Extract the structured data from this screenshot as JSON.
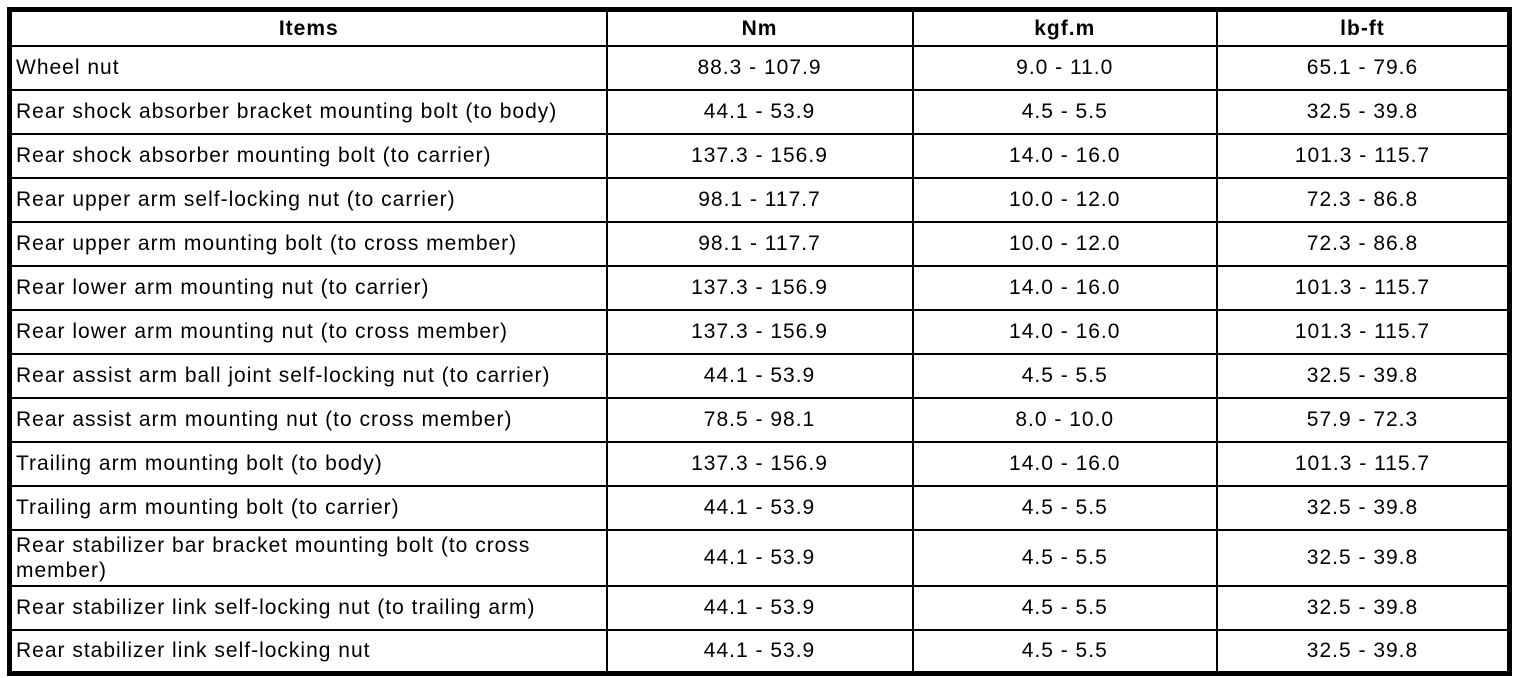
{
  "colors": {
    "border": "#000000",
    "text": "#000000",
    "background": "#ffffff"
  },
  "table": {
    "headers": [
      "Items",
      "Nm",
      "kgf.m",
      "lb-ft"
    ],
    "rows": [
      {
        "item": "Wheel nut",
        "nm": "88.3 - 107.9",
        "kgfm": "9.0 - 11.0",
        "lbft": "65.1 - 79.6"
      },
      {
        "item": "Rear shock absorber bracket mounting bolt (to body)",
        "nm": "44.1 - 53.9",
        "kgfm": "4.5 - 5.5",
        "lbft": "32.5 - 39.8"
      },
      {
        "item": "Rear shock absorber mounting bolt (to carrier)",
        "nm": "137.3 - 156.9",
        "kgfm": "14.0 - 16.0",
        "lbft": "101.3 - 115.7"
      },
      {
        "item": "Rear upper arm self-locking nut (to carrier)",
        "nm": "98.1 - 117.7",
        "kgfm": "10.0 - 12.0",
        "lbft": "72.3 - 86.8"
      },
      {
        "item": "Rear upper arm mounting bolt (to cross member)",
        "nm": "98.1 - 117.7",
        "kgfm": "10.0 - 12.0",
        "lbft": "72.3 - 86.8"
      },
      {
        "item": "Rear lower arm mounting nut (to carrier)",
        "nm": "137.3 - 156.9",
        "kgfm": "14.0 - 16.0",
        "lbft": "101.3 - 115.7"
      },
      {
        "item": "Rear lower arm mounting nut (to cross member)",
        "nm": "137.3 - 156.9",
        "kgfm": "14.0 - 16.0",
        "lbft": "101.3 - 115.7"
      },
      {
        "item": "Rear assist arm ball joint self-locking nut (to carrier)",
        "nm": "44.1 - 53.9",
        "kgfm": "4.5 - 5.5",
        "lbft": "32.5 - 39.8"
      },
      {
        "item": "Rear assist arm mounting nut (to cross member)",
        "nm": "78.5 - 98.1",
        "kgfm": "8.0 - 10.0",
        "lbft": "57.9 - 72.3"
      },
      {
        "item": "Trailing arm mounting bolt (to body)",
        "nm": "137.3 - 156.9",
        "kgfm": "14.0 - 16.0",
        "lbft": "101.3 - 115.7"
      },
      {
        "item": "Trailing arm mounting bolt (to carrier)",
        "nm": "44.1 - 53.9",
        "kgfm": "4.5 - 5.5",
        "lbft": "32.5 - 39.8"
      },
      {
        "item": "Rear stabilizer bar bracket mounting bolt (to cross member)",
        "nm": "44.1 - 53.9",
        "kgfm": "4.5 - 5.5",
        "lbft": "32.5 - 39.8"
      },
      {
        "item": "Rear stabilizer link self-locking nut (to trailing arm)",
        "nm": "44.1 - 53.9",
        "kgfm": "4.5 - 5.5",
        "lbft": "32.5 - 39.8"
      },
      {
        "item": "Rear stabilizer link self-locking nut",
        "nm": "44.1 - 53.9",
        "kgfm": "4.5 - 5.5",
        "lbft": "32.5 - 39.8"
      }
    ]
  }
}
